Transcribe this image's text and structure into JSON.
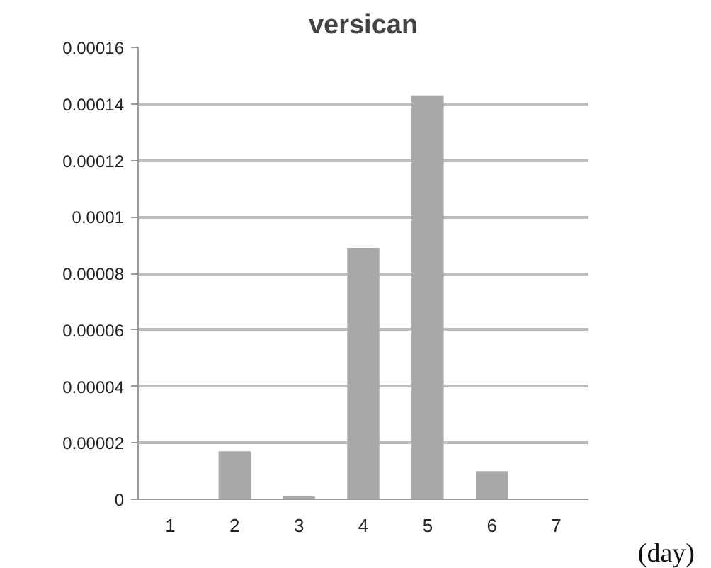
{
  "chart_data": {
    "type": "bar",
    "title": "versican",
    "xlabel": "(day)",
    "categories": [
      "1",
      "2",
      "3",
      "4",
      "5",
      "6",
      "7"
    ],
    "values": [
      0,
      1.7e-05,
      1e-06,
      8.9e-05,
      0.000143,
      1e-05,
      0
    ],
    "color": "#a8a8a8",
    "ylim": [
      0,
      0.00016
    ],
    "yticks": [
      0,
      {
        "value": 2e-05,
        "label": "0.00002"
      },
      {
        "value": 4e-05,
        "label": "0.00004"
      },
      {
        "value": 6e-05,
        "label": "0.00006"
      },
      {
        "value": 8e-05,
        "label": "0.00008"
      },
      0.0001,
      0.00012,
      0.00014,
      0.00016
    ],
    "grid": "y"
  }
}
